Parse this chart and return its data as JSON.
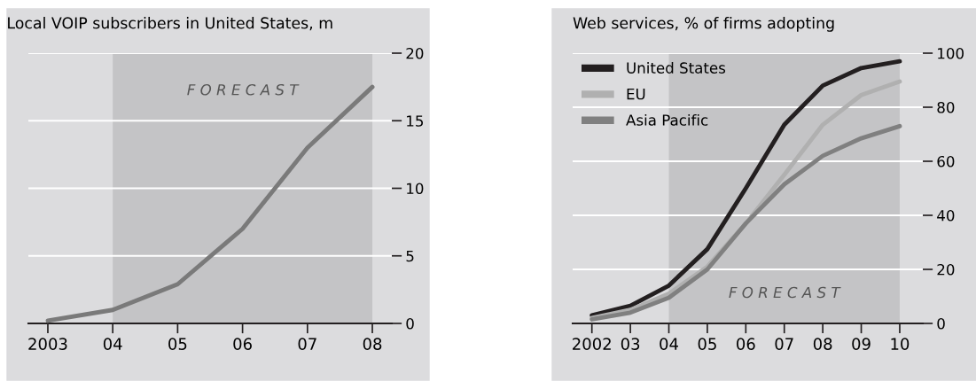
{
  "chart_data": [
    {
      "type": "line",
      "title": "Local VOIP subscribers in United States, m",
      "x": [
        2003,
        2004,
        2005,
        2006,
        2007,
        2008
      ],
      "series": [
        {
          "color": "#7a7a7a",
          "values": [
            0.2,
            1,
            2.9,
            7,
            13,
            17.5
          ]
        }
      ],
      "xlim": [
        2002.7,
        2008.3
      ],
      "xticks": [
        {
          "value": 2003,
          "label": "2003"
        },
        {
          "value": 2004,
          "label": "04"
        },
        {
          "value": 2005,
          "label": "05"
        },
        {
          "value": 2006,
          "label": "06"
        },
        {
          "value": 2007,
          "label": "07"
        },
        {
          "value": 2008,
          "label": "08"
        }
      ],
      "ylim": [
        0,
        20
      ],
      "yticks": [
        0,
        5,
        10,
        15,
        20
      ],
      "grid": "y",
      "legend": false,
      "marker": "none",
      "line_style": "solid",
      "bands": [
        {
          "axis": "x",
          "from": 2004,
          "to": 2008,
          "label": "F O R E C A S T",
          "color": "#c4c4c6"
        }
      ]
    },
    {
      "type": "line",
      "title": "Web services, % of firms adopting",
      "x": [
        2002,
        2003,
        2004,
        2005,
        2006,
        2007,
        2008,
        2009,
        2010
      ],
      "series": [
        {
          "name": "United States",
          "color": "#231f20",
          "values": [
            3,
            6.5,
            14,
            27.5,
            50,
            73.5,
            88,
            94.5,
            97
          ]
        },
        {
          "name": "EU",
          "color": "#b0b0b0",
          "values": [
            2,
            5,
            11,
            21,
            37,
            55,
            73.5,
            84.5,
            89.5
          ]
        },
        {
          "name": "Asia Pacific",
          "color": "#808080",
          "values": [
            1.5,
            4,
            9.5,
            20,
            37,
            51.5,
            62,
            68.5,
            73
          ]
        }
      ],
      "xlim": [
        2001.5,
        2010.6
      ],
      "xticks": [
        {
          "value": 2002,
          "label": "2002"
        },
        {
          "value": 2003,
          "label": "03"
        },
        {
          "value": 2004,
          "label": "04"
        },
        {
          "value": 2005,
          "label": "05"
        },
        {
          "value": 2006,
          "label": "06"
        },
        {
          "value": 2007,
          "label": "07"
        },
        {
          "value": 2008,
          "label": "08"
        },
        {
          "value": 2009,
          "label": "09"
        },
        {
          "value": 2010,
          "label": "10"
        }
      ],
      "ylim": [
        0,
        100
      ],
      "yticks": [
        0,
        20,
        40,
        60,
        80,
        100
      ],
      "grid": "y",
      "legend": "top left",
      "marker": "none",
      "line_style": "solid",
      "bands": [
        {
          "axis": "x",
          "from": 2004,
          "to": 2010,
          "label": "F O R E C A S T",
          "color": "#c4c4c6"
        }
      ]
    }
  ]
}
